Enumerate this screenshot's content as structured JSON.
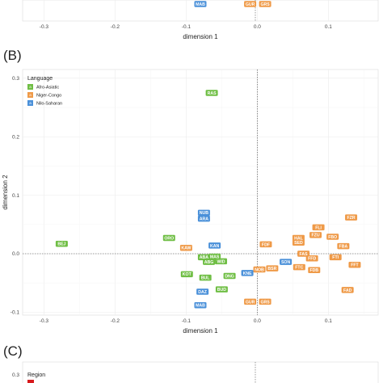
{
  "panels": {
    "a_letter": "",
    "b_letter": "(B)",
    "c_letter": "(C)",
    "c_legend_title": "Region"
  },
  "legend": {
    "title": "Language",
    "items": [
      {
        "label": "Afro-Asiatic",
        "color": "#6fbe44"
      },
      {
        "label": "Niger-Congo",
        "color": "#ef9a48"
      },
      {
        "label": "Nilo-Saharan",
        "color": "#4a90d9"
      }
    ]
  },
  "top_partial": {
    "labels": [
      {
        "code": "MAB",
        "x": -0.08,
        "y": -0.088,
        "group": "Nilo-Saharan"
      },
      {
        "code": "GUR",
        "x": -0.01,
        "y": -0.082,
        "group": "Niger-Congo"
      },
      {
        "code": "GRS",
        "x": 0.011,
        "y": -0.082,
        "group": "Niger-Congo"
      }
    ],
    "xticks": [
      "-0.3",
      "-0.2",
      "-0.1",
      "0.0",
      "0.1"
    ],
    "xlabel": "dimension 1"
  },
  "chart_data": {
    "type": "scatter",
    "title": "",
    "xlabel": "dimension 1",
    "ylabel": "dimension 2",
    "xlim": [
      -0.33,
      0.17
    ],
    "ylim": [
      -0.105,
      0.315
    ],
    "xticks": [
      -0.3,
      -0.2,
      -0.1,
      0.0,
      0.1
    ],
    "yticks": [
      -0.1,
      0.0,
      0.1,
      0.2,
      0.3
    ],
    "xtick_labels": [
      "-0.3",
      "-0.2",
      "-0.1",
      "0.0",
      "0.1"
    ],
    "ytick_labels": [
      "-0.1",
      "0.0",
      "0.1",
      "0.2",
      "0.3"
    ],
    "grid": true,
    "reference_lines": {
      "x": 0,
      "y": 0,
      "style": "dotted"
    },
    "legend_placement": "top-left",
    "series": [
      {
        "name": "Afro-Asiatic",
        "color": "#6fbe44",
        "points": [
          {
            "label": "BEJ",
            "x": -0.275,
            "y": 0.017
          },
          {
            "label": "RAS",
            "x": -0.064,
            "y": 0.275
          },
          {
            "label": "ORO",
            "x": -0.124,
            "y": 0.027
          },
          {
            "label": "ABA",
            "x": -0.075,
            "y": -0.006
          },
          {
            "label": "MAS",
            "x": -0.06,
            "y": -0.005
          },
          {
            "label": "ABG",
            "x": -0.068,
            "y": -0.014
          },
          {
            "label": "WID",
            "x": -0.051,
            "y": -0.013
          },
          {
            "label": "KOT",
            "x": -0.099,
            "y": -0.035
          },
          {
            "label": "BUL",
            "x": -0.073,
            "y": -0.041
          },
          {
            "label": "DNG",
            "x": -0.039,
            "y": -0.038
          },
          {
            "label": "BUD",
            "x": -0.05,
            "y": -0.061
          }
        ]
      },
      {
        "name": "Niger-Congo",
        "color": "#ef9a48",
        "points": [
          {
            "label": "KAW",
            "x": -0.1,
            "y": 0.01
          },
          {
            "label": "FDF",
            "x": 0.012,
            "y": 0.016
          },
          {
            "label": "HAL",
            "x": 0.058,
            "y": 0.027
          },
          {
            "label": "SED",
            "x": 0.058,
            "y": 0.019
          },
          {
            "label": "FLI",
            "x": 0.086,
            "y": 0.045
          },
          {
            "label": "FZU",
            "x": 0.082,
            "y": 0.032
          },
          {
            "label": "FBO",
            "x": 0.106,
            "y": 0.029
          },
          {
            "label": "FZR",
            "x": 0.132,
            "y": 0.062
          },
          {
            "label": "FBA",
            "x": 0.121,
            "y": 0.013
          },
          {
            "label": "FAS",
            "x": 0.065,
            "y": 0.0
          },
          {
            "label": "FFD",
            "x": 0.077,
            "y": -0.008
          },
          {
            "label": "FTI",
            "x": 0.11,
            "y": -0.006
          },
          {
            "label": "FFT",
            "x": 0.137,
            "y": -0.019
          },
          {
            "label": "FTC",
            "x": 0.059,
            "y": -0.023
          },
          {
            "label": "FDB",
            "x": 0.08,
            "y": -0.028
          },
          {
            "label": "NOB",
            "x": 0.003,
            "y": -0.027
          },
          {
            "label": "BSR",
            "x": 0.021,
            "y": -0.025
          },
          {
            "label": "FAD",
            "x": 0.127,
            "y": -0.062
          },
          {
            "label": "GUR",
            "x": -0.01,
            "y": -0.082
          },
          {
            "label": "GRS",
            "x": 0.011,
            "y": -0.082
          }
        ]
      },
      {
        "name": "Nilo-Saharan",
        "color": "#4a90d9",
        "points": [
          {
            "label": "NUB",
            "x": -0.075,
            "y": 0.07
          },
          {
            "label": "ARA",
            "x": -0.075,
            "y": 0.06
          },
          {
            "label": "KAN",
            "x": -0.06,
            "y": 0.014
          },
          {
            "label": "SON",
            "x": 0.04,
            "y": -0.014
          },
          {
            "label": "KNE",
            "x": -0.014,
            "y": -0.033
          },
          {
            "label": "DAZ",
            "x": -0.077,
            "y": -0.065
          },
          {
            "label": "MAB",
            "x": -0.08,
            "y": -0.088
          }
        ]
      }
    ]
  }
}
